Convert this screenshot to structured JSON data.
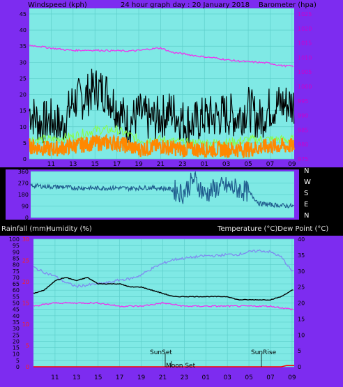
{
  "wind_panel": {
    "title": "24 hour graph day : 20 January 2018",
    "left_label": "Windspeed (kph)",
    "right_label": "Barometer (hpa)"
  },
  "lower_panel": {
    "left_label_1": "Rainfall (mm)",
    "left_label_2": "Humidity (%)",
    "right_label": "Temperature (°C)Dew Point (°C)",
    "events": {
      "sunset": "SunSet",
      "sunrise": "SunRise",
      "moonset": "Moon Set"
    }
  },
  "colors": {
    "frame": "#7d2cf0",
    "plot": "#7fe9e5",
    "gust": "#000000",
    "average": "#88ff44",
    "speed": "#ff8800",
    "barometer": "#ee33ee",
    "direction": "#1f5c8e",
    "humidity": "#7f8cf0",
    "temperature": "#000000",
    "dew_point": "#ee33ee",
    "rain": "#ff0000"
  },
  "chart_data": [
    {
      "type": "line",
      "x_ticks": [
        "11",
        "13",
        "15",
        "17",
        "19",
        "21",
        "23",
        "01",
        "03",
        "05",
        "07",
        "09"
      ],
      "x_range_hours": [
        9,
        33.2
      ],
      "ylim": [
        0,
        45
      ],
      "y_ticks": [
        "0",
        "5",
        "10",
        "15",
        "20",
        "25",
        "30",
        "35",
        "40",
        "45"
      ],
      "y2lim": [
        975,
        1025
      ],
      "y2_ticks": [
        "975",
        "980",
        "985",
        "990",
        "995",
        "1000",
        "1005",
        "1010",
        "1015",
        "1020",
        "1025"
      ],
      "series": [
        {
          "key": "gust",
          "x": [
            9,
            10,
            11,
            12,
            13,
            14,
            15,
            16,
            17,
            18,
            19,
            20,
            21,
            22,
            23,
            24,
            25,
            26,
            27,
            28,
            29,
            30,
            31,
            32,
            33
          ],
          "values": [
            15,
            11,
            12,
            10,
            18,
            19,
            22,
            21,
            16,
            11,
            14,
            12,
            13,
            15,
            12,
            11,
            13,
            13,
            14,
            13,
            16,
            12,
            16,
            17,
            17
          ]
        },
        {
          "key": "average",
          "x": [
            9,
            11,
            13,
            15,
            17,
            19,
            21,
            23,
            25,
            27,
            29,
            31,
            33
          ],
          "values": [
            6,
            6,
            7,
            9,
            9,
            6,
            6,
            5,
            5,
            5,
            6,
            6,
            6
          ]
        },
        {
          "key": "speed",
          "x": [
            9,
            11,
            13,
            15,
            17,
            19,
            21,
            23,
            25,
            27,
            29,
            31,
            33
          ],
          "values": [
            4,
            3,
            4,
            5,
            5,
            3,
            4,
            3,
            3,
            3,
            3,
            4,
            4
          ]
        },
        {
          "key": "barometer",
          "axis": "right",
          "x": [
            9,
            10,
            11,
            12,
            13,
            14,
            15,
            16,
            17,
            18,
            19,
            20,
            21,
            22,
            23,
            24,
            25,
            26,
            27,
            28,
            29,
            30,
            31,
            32,
            33
          ],
          "values": [
            1014.2,
            1013.8,
            1013.2,
            1012.8,
            1012.4,
            1012.5,
            1012.5,
            1012.4,
            1012.3,
            1012.2,
            1012.4,
            1012.9,
            1013.3,
            1011.8,
            1011.3,
            1010.7,
            1010.2,
            1009.8,
            1009.2,
            1008.8,
            1008.5,
            1008.3,
            1008.0,
            1007.2,
            1007.0
          ]
        }
      ]
    },
    {
      "type": "line",
      "ylim": [
        0,
        360
      ],
      "y_ticks": [
        "0",
        "90",
        "180",
        "270",
        "360"
      ],
      "compass": [
        "N",
        "W",
        "S",
        "E",
        "N"
      ],
      "x_range_hours": [
        9,
        33.2
      ],
      "series": [
        {
          "key": "direction",
          "x": [
            9,
            10,
            11,
            12,
            13,
            14,
            15,
            16,
            17,
            18,
            19,
            20,
            21,
            22,
            23,
            24,
            25,
            26,
            27,
            28,
            29,
            30,
            31,
            32,
            33
          ],
          "values": [
            250,
            245,
            240,
            240,
            232,
            232,
            230,
            230,
            232,
            228,
            232,
            235,
            230,
            220,
            190,
            300,
            180,
            230,
            240,
            225,
            200,
            110,
            100,
            95,
            90
          ]
        }
      ]
    },
    {
      "type": "line",
      "x_ticks": [
        "11",
        "13",
        "15",
        "17",
        "19",
        "21",
        "23",
        "01",
        "03",
        "05",
        "07",
        "09"
      ],
      "x_range_hours": [
        9,
        33.2
      ],
      "ylim": [
        0,
        100
      ],
      "y_ticks": [
        "0",
        "5",
        "10",
        "15",
        "20",
        "25",
        "30",
        "35",
        "40",
        "45",
        "50",
        "55",
        "60",
        "65",
        "70",
        "75",
        "80",
        "85",
        "90",
        "95",
        "100"
      ],
      "y_rain_lim": [
        0,
        30
      ],
      "y_rain_ticks": [
        "0",
        "5",
        "10",
        "15",
        "20",
        "25",
        "30"
      ],
      "y2lim": [
        0,
        40
      ],
      "y2_ticks": [
        "0",
        "5",
        "10",
        "15",
        "20",
        "25",
        "30",
        "35",
        "40"
      ],
      "series": [
        {
          "key": "humidity",
          "x": [
            9,
            10,
            11,
            12,
            13,
            14,
            15,
            16,
            17,
            18,
            19,
            20,
            21,
            22,
            23,
            24,
            25,
            26,
            27,
            28,
            29,
            30,
            31,
            32,
            33
          ],
          "values": [
            78,
            74,
            71,
            66,
            63,
            64,
            65,
            66,
            68,
            69,
            72,
            77,
            81,
            84,
            85,
            86,
            87,
            87,
            88,
            88,
            90,
            91,
            90,
            86,
            75
          ]
        },
        {
          "key": "temperature",
          "axis": "right",
          "x": [
            9,
            10,
            11,
            12,
            13,
            14,
            15,
            16,
            17,
            18,
            19,
            20,
            21,
            22,
            23,
            24,
            25,
            26,
            27,
            28,
            29,
            30,
            31,
            32,
            33
          ],
          "values": [
            23,
            24,
            27,
            28,
            27,
            28,
            26,
            26,
            26,
            25,
            25,
            24,
            23,
            22,
            22,
            22,
            22,
            22,
            22,
            21,
            21,
            21,
            21,
            22,
            24
          ]
        },
        {
          "key": "dew_point",
          "axis": "right",
          "x": [
            9,
            11,
            13,
            15,
            17,
            19,
            21,
            23,
            25,
            27,
            29,
            31,
            33
          ],
          "values": [
            19,
            20,
            20,
            20,
            19,
            19,
            20,
            19,
            19,
            19,
            19,
            19,
            18
          ]
        },
        {
          "key": "rain",
          "axis": "rain",
          "x": [
            9,
            32,
            32.5,
            33.2
          ],
          "values": [
            0,
            0,
            0.3,
            0.3
          ]
        }
      ]
    }
  ]
}
